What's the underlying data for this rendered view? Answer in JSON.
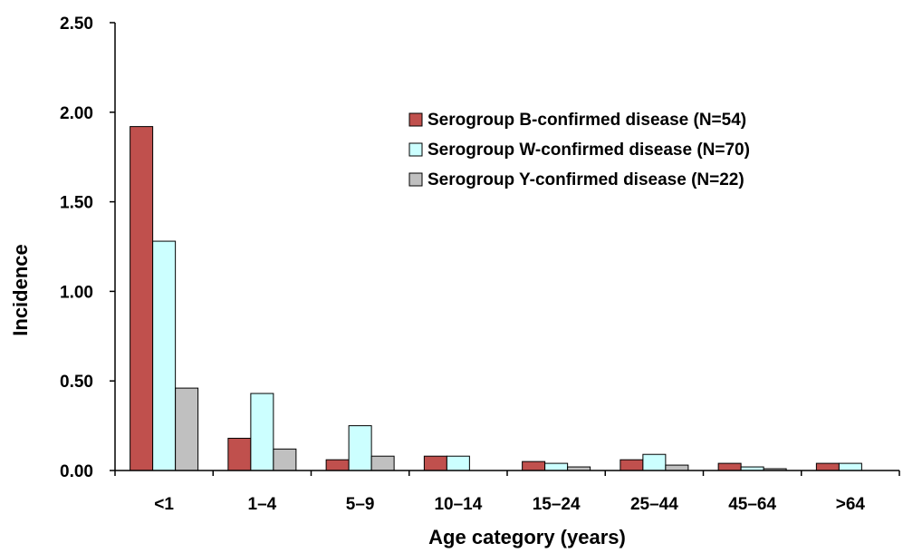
{
  "chart_data": {
    "type": "bar",
    "title": "",
    "xlabel": "Age category (years)",
    "ylabel": "Incidence",
    "categories": [
      "<1",
      "1–4",
      "5–9",
      "10–14",
      "15–24",
      "25–44",
      "45–64",
      ">64"
    ],
    "series": [
      {
        "name": "Serogroup B-confirmed disease (N=54)",
        "color": "#c0504d",
        "values": [
          1.92,
          0.18,
          0.06,
          0.08,
          0.05,
          0.06,
          0.04,
          0.04
        ]
      },
      {
        "name": "Serogroup W-confirmed disease (N=70)",
        "color": "#ccffff",
        "values": [
          1.28,
          0.43,
          0.25,
          0.08,
          0.04,
          0.09,
          0.02,
          0.04
        ]
      },
      {
        "name": "Serogroup Y-confirmed disease (N=22)",
        "color": "#c0c0c0",
        "values": [
          0.46,
          0.12,
          0.08,
          0.0,
          0.02,
          0.03,
          0.01,
          0.0
        ]
      }
    ],
    "ylim": [
      0,
      2.5
    ],
    "yticks": [
      "0.00",
      "0.50",
      "1.00",
      "1.50",
      "2.00",
      "2.50"
    ],
    "ytick_values": [
      0,
      0.5,
      1.0,
      1.5,
      2.0,
      2.5
    ],
    "grid": false,
    "legend_position": "top-right"
  }
}
